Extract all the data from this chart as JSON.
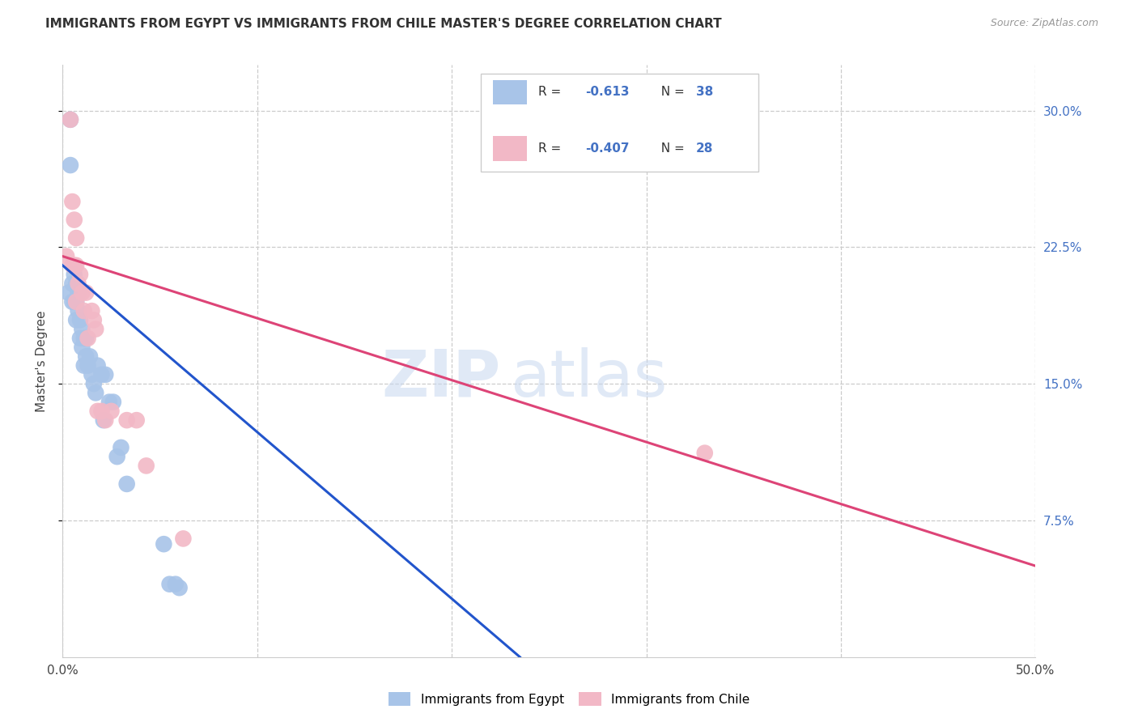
{
  "title": "IMMIGRANTS FROM EGYPT VS IMMIGRANTS FROM CHILE MASTER'S DEGREE CORRELATION CHART",
  "source": "Source: ZipAtlas.com",
  "ylabel": "Master's Degree",
  "right_yticks": [
    "30.0%",
    "22.5%",
    "15.0%",
    "7.5%"
  ],
  "right_ytick_vals": [
    0.3,
    0.225,
    0.15,
    0.075
  ],
  "xlim": [
    0.0,
    0.5
  ],
  "ylim": [
    0.0,
    0.325
  ],
  "watermark_zip": "ZIP",
  "watermark_atlas": "atlas",
  "color_egypt": "#a8c4e8",
  "color_chile": "#f2b8c6",
  "color_line_egypt": "#2255cc",
  "color_line_chile": "#dd4477",
  "egypt_x": [
    0.003,
    0.004,
    0.004,
    0.005,
    0.005,
    0.006,
    0.006,
    0.007,
    0.007,
    0.007,
    0.008,
    0.008,
    0.009,
    0.009,
    0.01,
    0.01,
    0.011,
    0.011,
    0.012,
    0.012,
    0.013,
    0.014,
    0.015,
    0.016,
    0.017,
    0.018,
    0.02,
    0.021,
    0.022,
    0.024,
    0.026,
    0.028,
    0.03,
    0.033,
    0.052,
    0.055,
    0.058,
    0.06
  ],
  "egypt_y": [
    0.2,
    0.295,
    0.27,
    0.205,
    0.195,
    0.21,
    0.195,
    0.205,
    0.195,
    0.185,
    0.2,
    0.19,
    0.185,
    0.175,
    0.18,
    0.17,
    0.175,
    0.16,
    0.175,
    0.165,
    0.16,
    0.165,
    0.155,
    0.15,
    0.145,
    0.16,
    0.155,
    0.13,
    0.155,
    0.14,
    0.14,
    0.11,
    0.115,
    0.095,
    0.062,
    0.04,
    0.04,
    0.038
  ],
  "chile_x": [
    0.002,
    0.004,
    0.005,
    0.005,
    0.006,
    0.006,
    0.007,
    0.007,
    0.007,
    0.008,
    0.009,
    0.01,
    0.011,
    0.012,
    0.013,
    0.015,
    0.016,
    0.017,
    0.018,
    0.02,
    0.022,
    0.025,
    0.033,
    0.038,
    0.043,
    0.062,
    0.33
  ],
  "chile_y": [
    0.22,
    0.295,
    0.25,
    0.215,
    0.24,
    0.215,
    0.23,
    0.215,
    0.195,
    0.205,
    0.21,
    0.2,
    0.19,
    0.2,
    0.175,
    0.19,
    0.185,
    0.18,
    0.135,
    0.135,
    0.13,
    0.135,
    0.13,
    0.13,
    0.105,
    0.065,
    0.112
  ],
  "egypt_line_x": [
    0.0,
    0.235
  ],
  "egypt_line_y": [
    0.215,
    0.0
  ],
  "chile_line_x": [
    0.0,
    0.5
  ],
  "chile_line_y": [
    0.22,
    0.05
  ]
}
